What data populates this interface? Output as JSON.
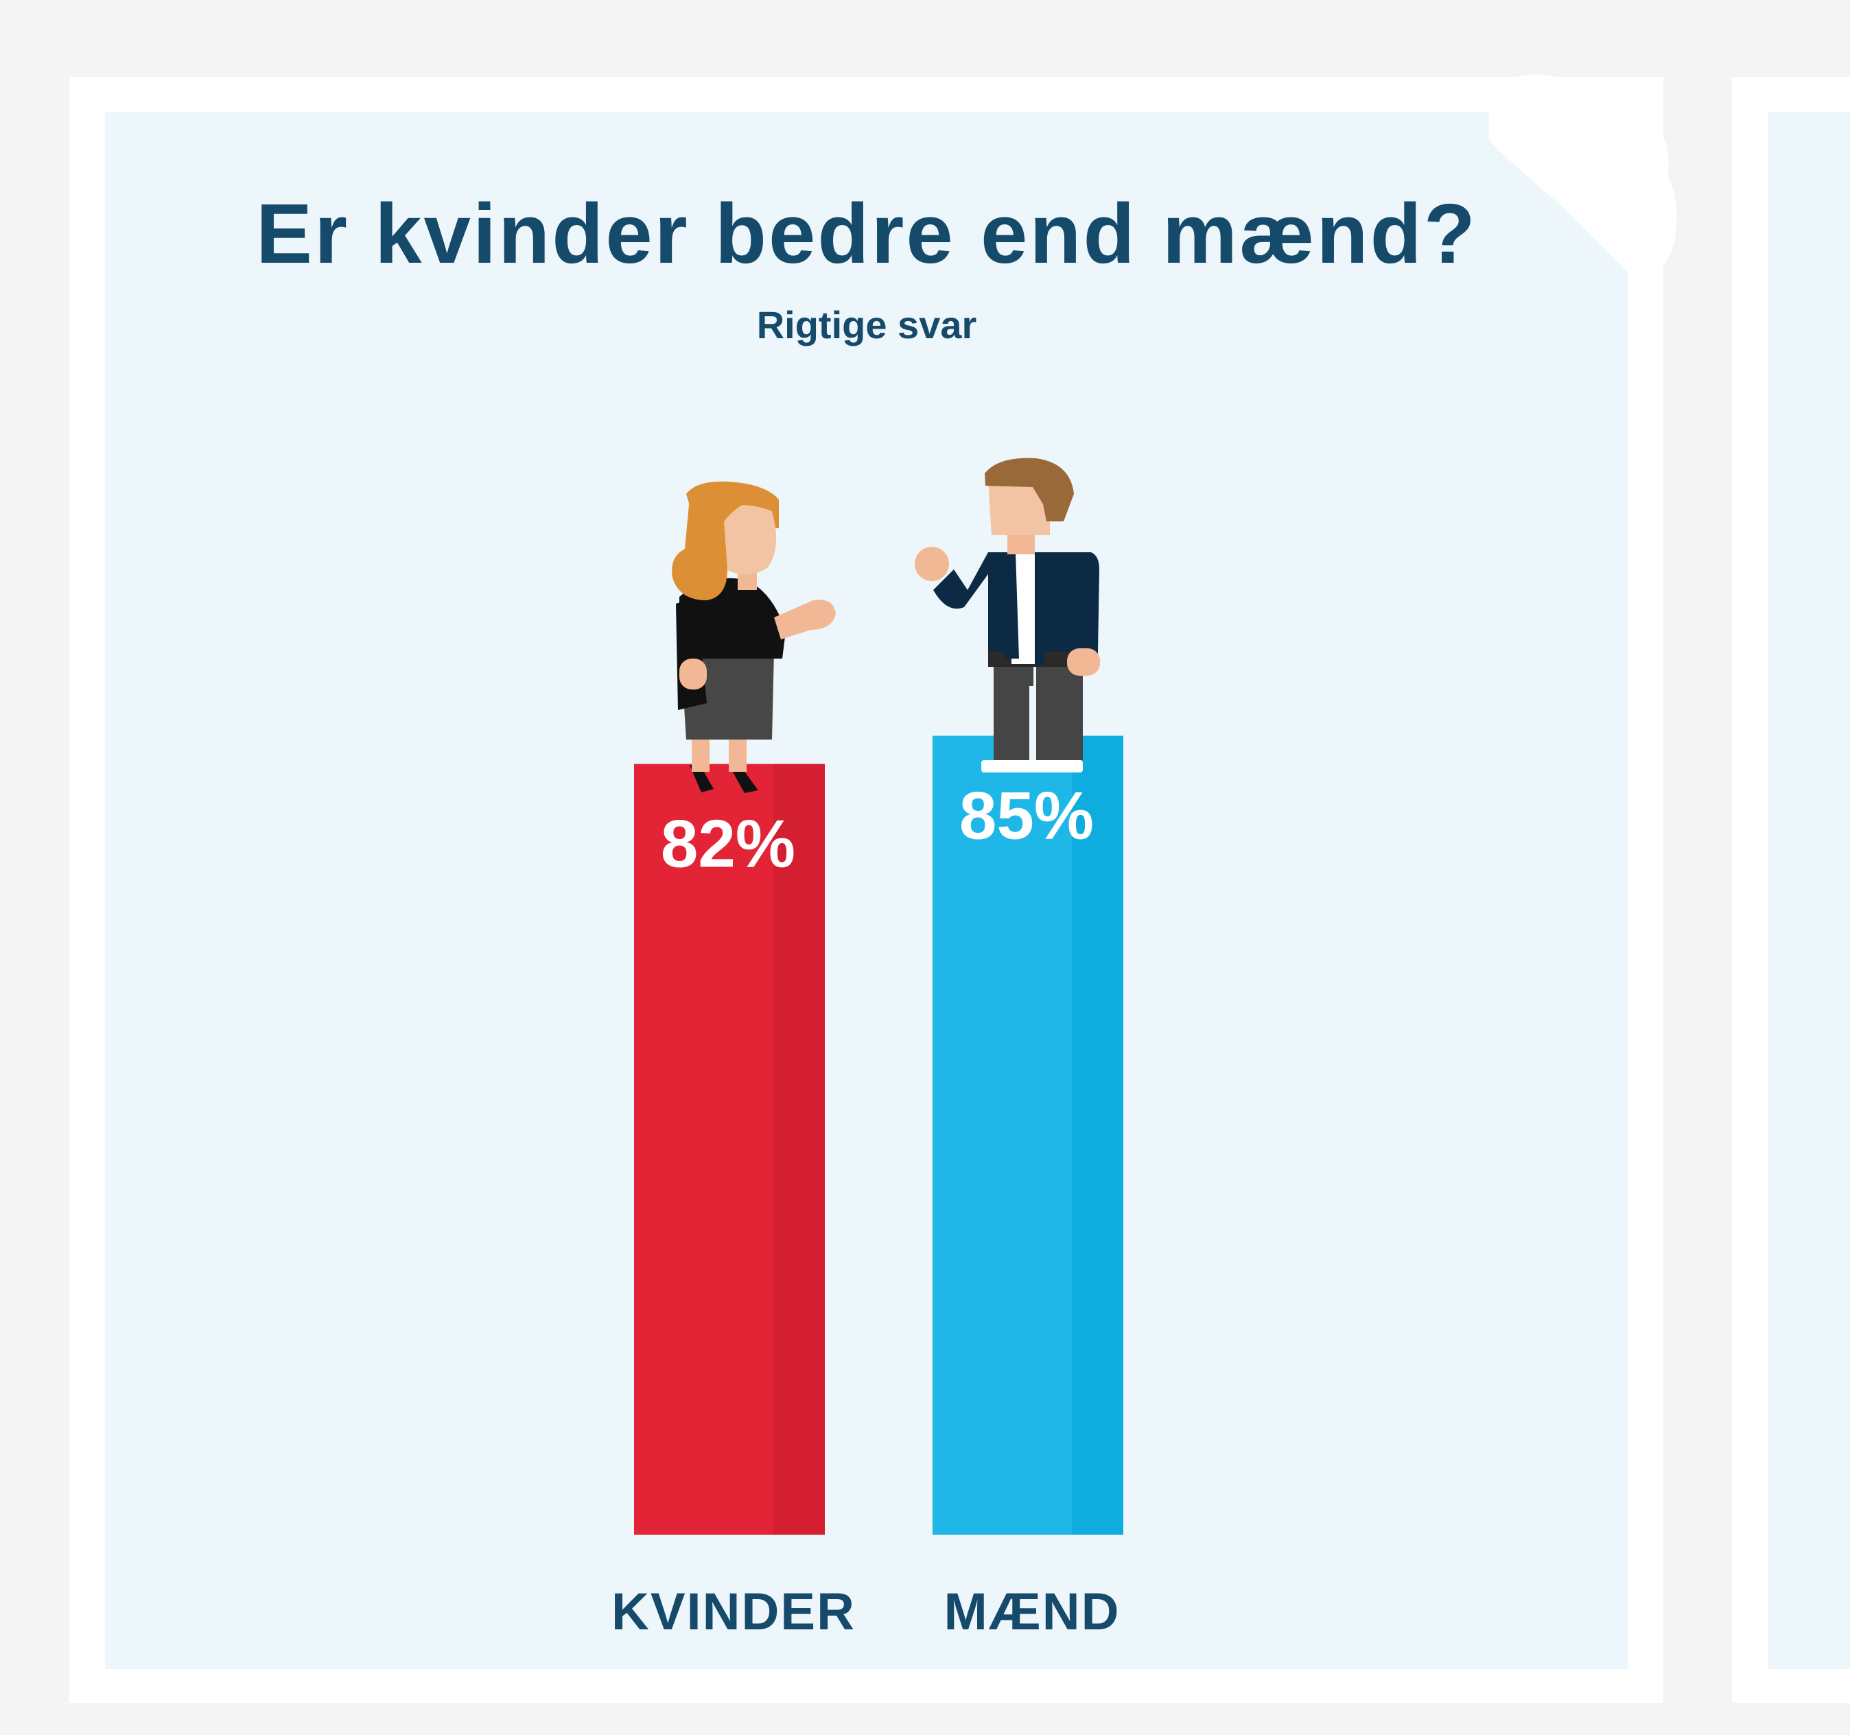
{
  "title": "Er kvinder bedre end mænd?",
  "subtitle": "Rigtige svar",
  "chart_data": {
    "type": "bar",
    "title": "Er kvinder bedre end mænd?",
    "subtitle": "Rigtige svar",
    "categories": [
      "KVINDER",
      "MÆND"
    ],
    "values": [
      82,
      85
    ],
    "value_labels": [
      "82%",
      "85%"
    ],
    "unit": "%",
    "ylim": [
      0,
      100
    ],
    "grid": false,
    "colors": [
      "#e32336",
      "#1fb7e8"
    ],
    "shade_colors": [
      "#d41f31",
      "#0facdf"
    ]
  },
  "illustrations": {
    "woman": "woman-figure-icon",
    "man": "man-figure-icon"
  }
}
